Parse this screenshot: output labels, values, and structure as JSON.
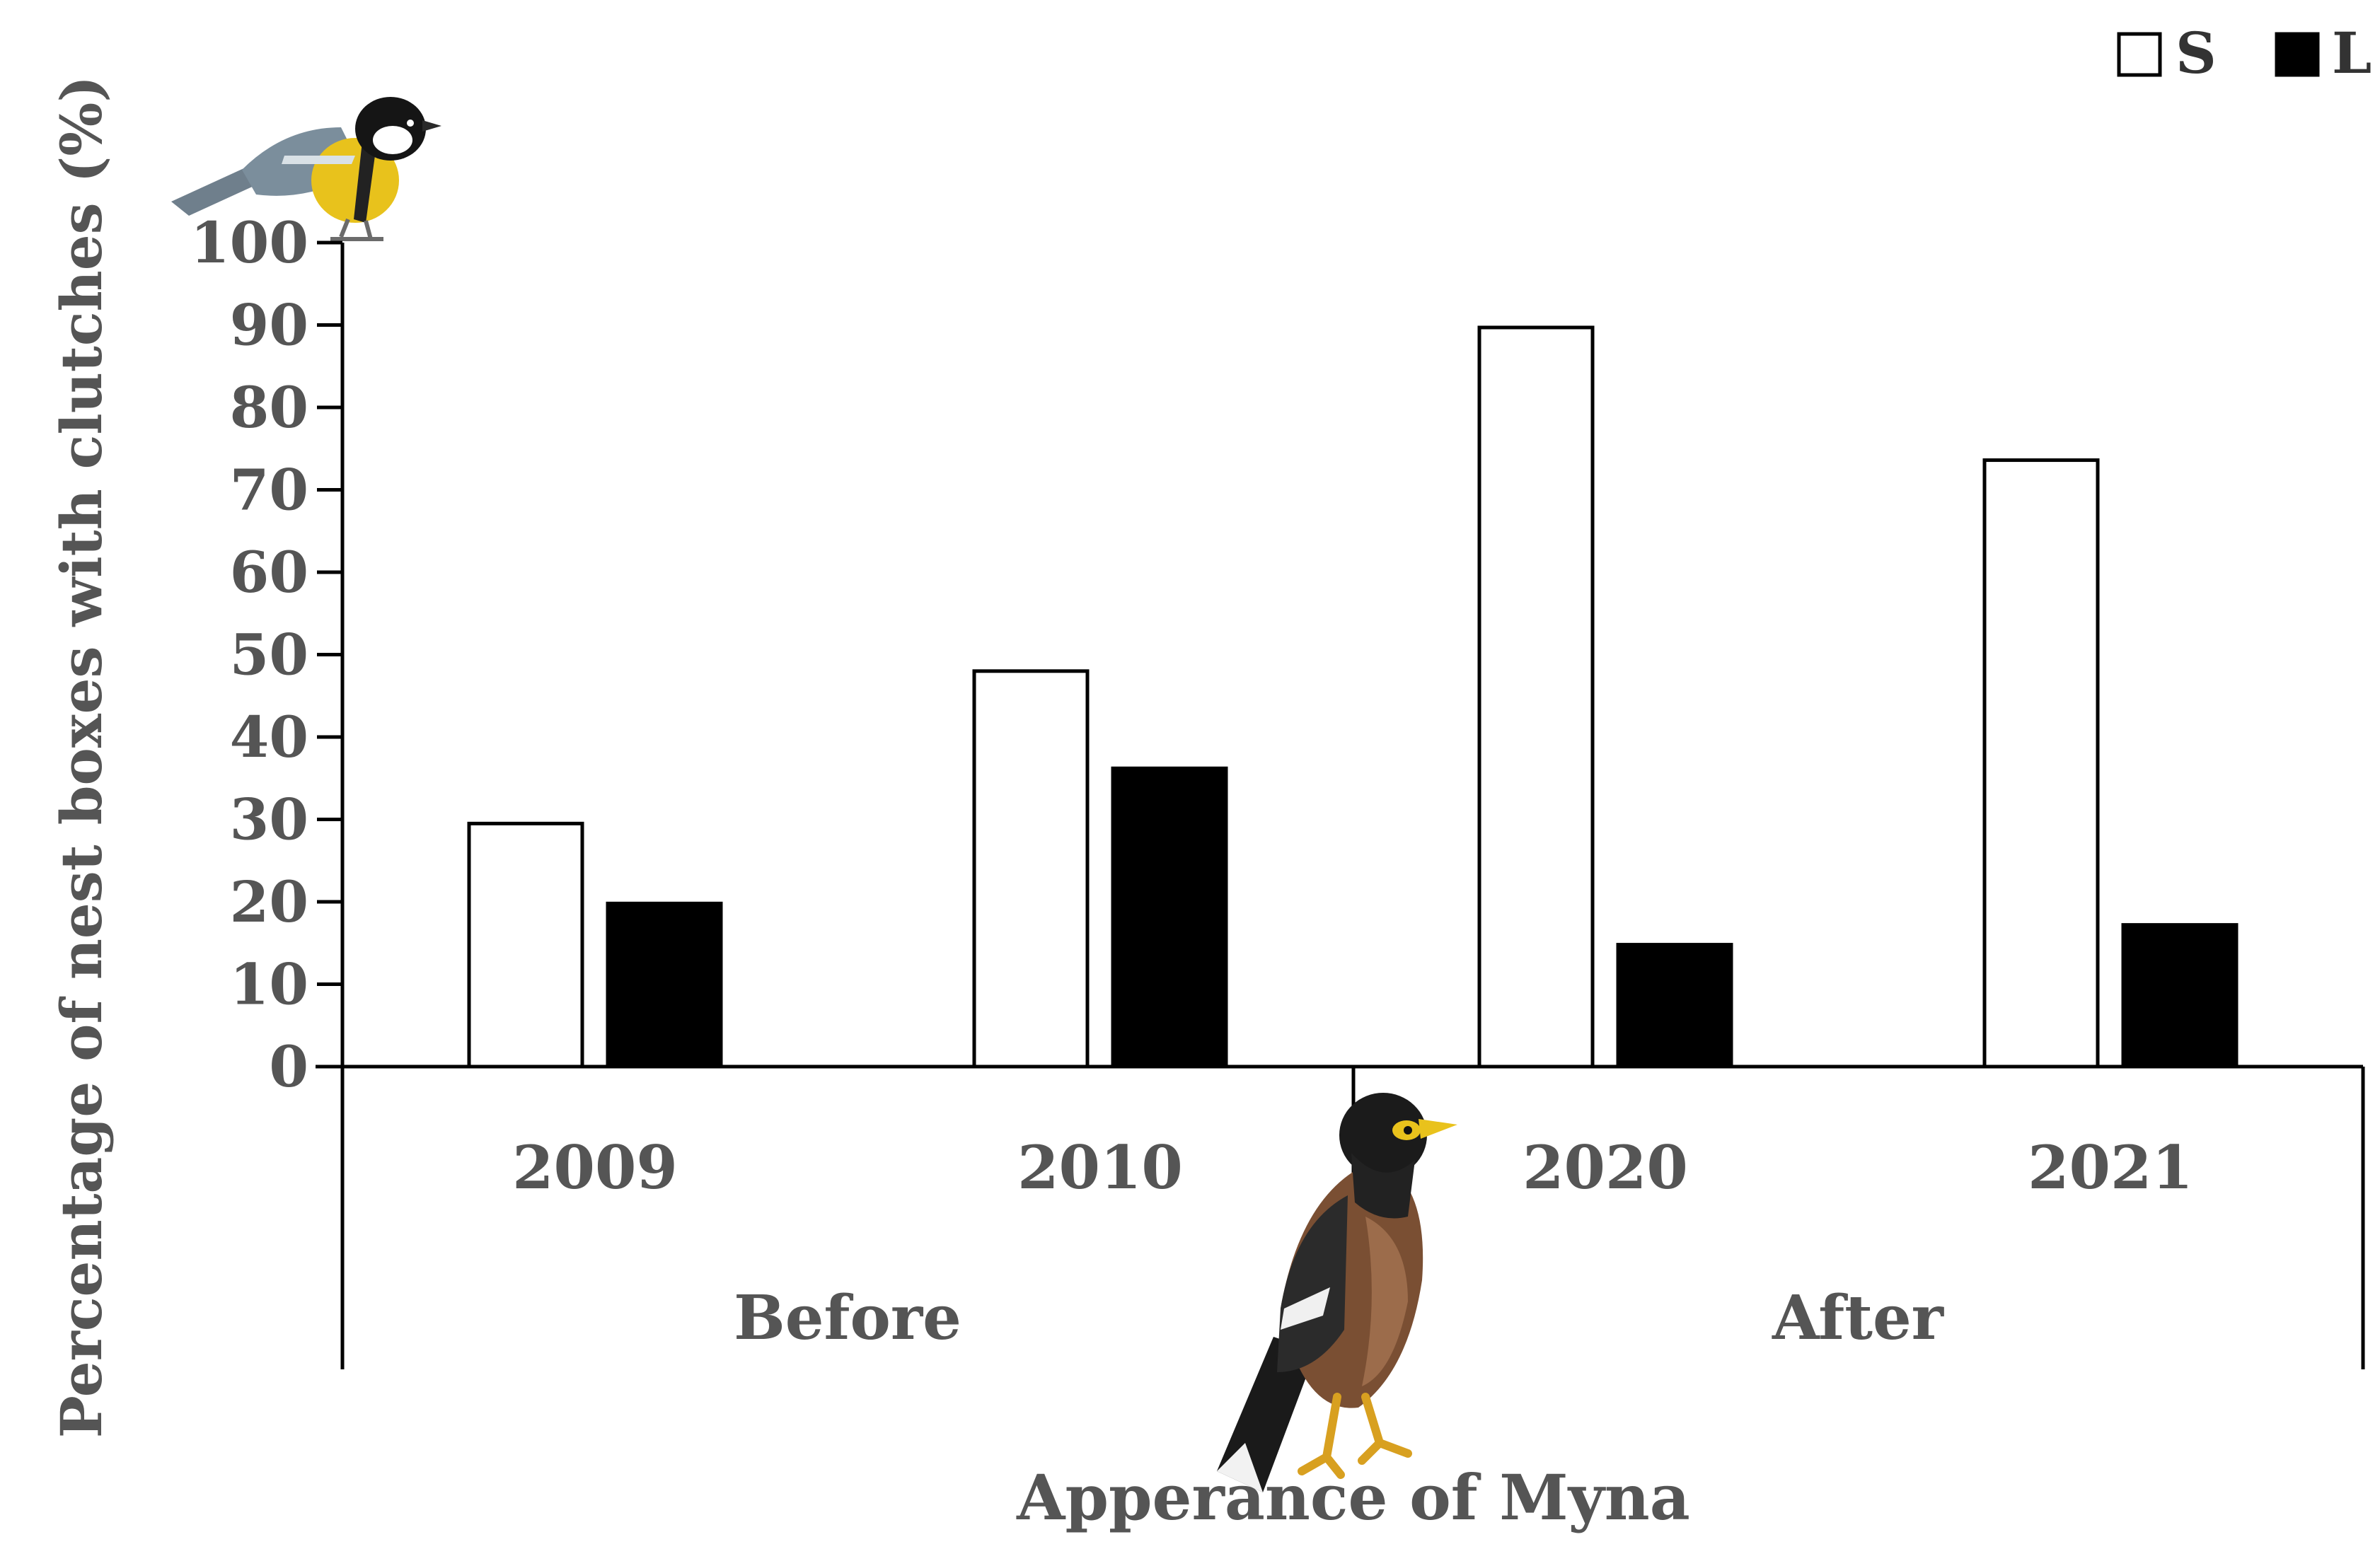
{
  "chart_data": {
    "type": "bar",
    "categories": [
      "2009",
      "2010",
      "2020",
      "2021"
    ],
    "groups": [
      {
        "label": "Before",
        "categories": [
          "2009",
          "2010"
        ]
      },
      {
        "label": "After",
        "categories": [
          "2020",
          "2021"
        ]
      }
    ],
    "series": [
      {
        "name": "S",
        "values": [
          29.5,
          48,
          89.7,
          73.6
        ],
        "color": "#ffffff"
      },
      {
        "name": "L",
        "values": [
          19.8,
          36.2,
          14.8,
          17.2
        ],
        "color": "#000000"
      }
    ],
    "title": "",
    "xlabel": "Apperance of Myna",
    "ylabel": "Percentage of nest boxes with clutches (%)",
    "ylim": [
      0,
      100
    ],
    "yticks": [
      "0",
      "10",
      "20",
      "30",
      "40",
      "50",
      "60",
      "70",
      "80",
      "90",
      "100"
    ],
    "grid": false,
    "legend_position": "top-right",
    "illustrations": [
      "great-tit-bird-icon",
      "common-myna-bird-icon"
    ]
  }
}
